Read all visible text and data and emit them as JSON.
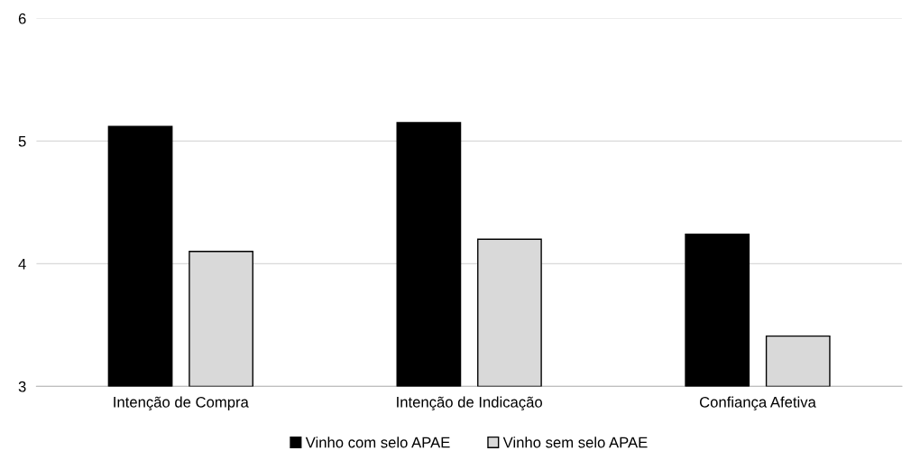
{
  "chart_data": {
    "type": "bar",
    "categories": [
      "Intenção de Compra",
      "Intenção de Indicação",
      "Confiança Afetiva"
    ],
    "series": [
      {
        "name": "Vinho com selo APAE",
        "color": "#000000",
        "values": [
          5.12,
          5.15,
          4.24
        ]
      },
      {
        "name": "Vinho sem selo APAE",
        "color": "#d9d9d9",
        "values": [
          4.1,
          4.2,
          3.41
        ]
      }
    ],
    "ylim": [
      3,
      6
    ],
    "yticks": [
      3,
      4,
      5,
      6
    ],
    "grid": "y",
    "legend": "bottom"
  }
}
